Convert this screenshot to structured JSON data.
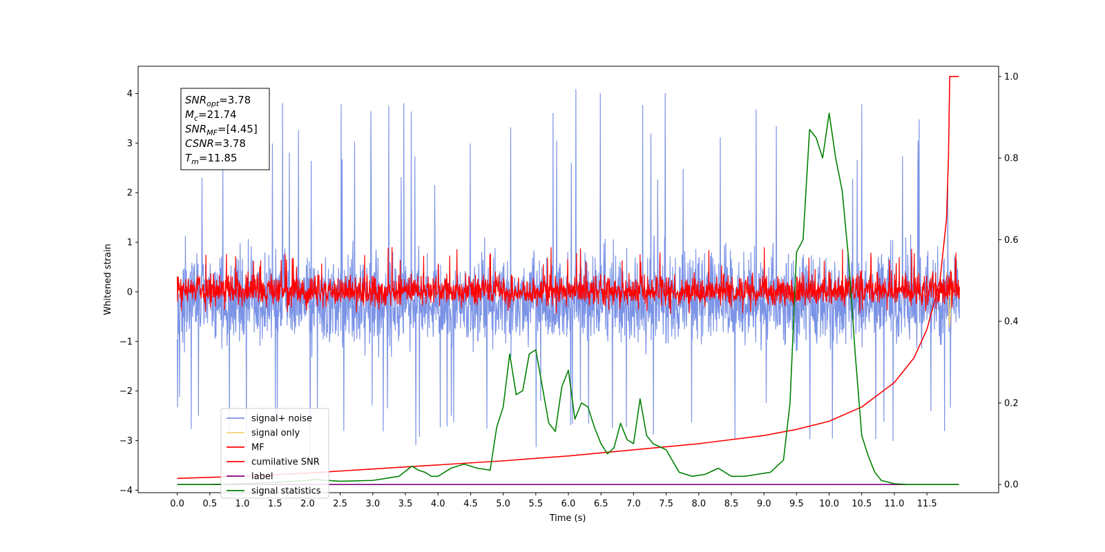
{
  "chart_data": {
    "type": "line",
    "xlabel": "Time (s)",
    "ylabel": "Whitened strain",
    "xlim": [
      -0.6,
      12.6
    ],
    "ylim": [
      -4.05,
      4.55
    ],
    "y2lim": [
      -0.02,
      1.025
    ],
    "x_ticks": [
      0.0,
      0.5,
      1.0,
      1.5,
      2.0,
      2.5,
      3.0,
      3.5,
      4.0,
      4.5,
      5.0,
      5.5,
      6.0,
      6.5,
      7.0,
      7.5,
      8.0,
      8.5,
      9.0,
      9.5,
      10.0,
      10.5,
      11.0,
      11.5
    ],
    "x_tick_labels": [
      "0.0",
      "0.5",
      "1.0",
      "1.5",
      "2.0",
      "2.5",
      "3.0",
      "3.5",
      "4.0",
      "4.5",
      "5.0",
      "5.5",
      "6.0",
      "6.5",
      "7.0",
      "7.5",
      "8.0",
      "8.5",
      "9.0",
      "9.5",
      "10.0",
      "10.5",
      "11.0",
      "11.5"
    ],
    "y_ticks": [
      -4,
      -3,
      -2,
      -1,
      0,
      1,
      2,
      3,
      4
    ],
    "y_tick_labels": [
      "−4",
      "−3",
      "−2",
      "−1",
      "0",
      "1",
      "2",
      "3",
      "4"
    ],
    "y2_ticks": [
      0.0,
      0.2,
      0.4,
      0.6,
      0.8,
      1.0
    ],
    "y2_tick_labels": [
      "0.0",
      "0.2",
      "0.4",
      "0.6",
      "0.8",
      "1.0"
    ],
    "grid": false,
    "legend_position": "lower-left",
    "info_box": {
      "position": "upper-left",
      "lines": [
        {
          "name": "SNR",
          "sub": "opt",
          "value": "=3.78"
        },
        {
          "name": "M",
          "sub": "c",
          "value": "=21.74"
        },
        {
          "name": "SNR",
          "sub": "MF",
          "value": "=[4.45]"
        },
        {
          "name": "CSNR",
          "sub": "",
          "value": "=3.78"
        },
        {
          "name": "T",
          "sub": "m",
          "value": "=11.85"
        }
      ]
    },
    "series": [
      {
        "name": "signal+ noise",
        "axis": "left",
        "color": "#7b93e6",
        "style": "noise",
        "x_range": [
          0.0,
          12.0
        ],
        "center": -0.25,
        "typical_range": [
          -1.4,
          1.3
        ],
        "extreme_range": [
          -3.6,
          4.1
        ]
      },
      {
        "name": "signal only",
        "axis": "left",
        "color": "#f5cf7a",
        "x": [
          11.8,
          11.85,
          11.88
        ],
        "y": [
          0.4,
          -0.7,
          0.3
        ]
      },
      {
        "name": "MF",
        "axis": "left",
        "color": "#ff0000",
        "style": "noise",
        "x_range": [
          0.0,
          12.0
        ],
        "center": 0.0,
        "typical_range": [
          -0.35,
          0.5
        ],
        "extreme_range": [
          -0.45,
          0.9
        ]
      },
      {
        "name": "cumilative SNR",
        "axis": "right",
        "color": "#ff0000",
        "x": [
          0.0,
          1.0,
          2.0,
          3.0,
          4.0,
          5.0,
          6.0,
          7.0,
          8.0,
          9.0,
          9.5,
          10.0,
          10.5,
          11.0,
          11.3,
          11.5,
          11.7,
          11.8,
          11.83,
          11.85,
          11.99
        ],
        "y": [
          0.015,
          0.02,
          0.028,
          0.038,
          0.048,
          0.058,
          0.07,
          0.085,
          0.1,
          0.12,
          0.135,
          0.155,
          0.19,
          0.25,
          0.31,
          0.38,
          0.5,
          0.65,
          0.8,
          1.0,
          1.0
        ]
      },
      {
        "name": "label",
        "axis": "right",
        "color": "#800080",
        "x": [
          0.0,
          11.99
        ],
        "y": [
          0.0,
          0.0
        ]
      },
      {
        "name": "signal statistics",
        "axis": "right",
        "color": "#008000",
        "x": [
          0.0,
          0.5,
          1.0,
          1.5,
          2.0,
          2.1,
          2.3,
          2.5,
          3.0,
          3.2,
          3.4,
          3.6,
          3.7,
          3.8,
          3.9,
          4.0,
          4.2,
          4.4,
          4.6,
          4.8,
          4.9,
          5.0,
          5.1,
          5.2,
          5.3,
          5.4,
          5.5,
          5.6,
          5.7,
          5.8,
          5.9,
          6.0,
          6.1,
          6.2,
          6.3,
          6.4,
          6.5,
          6.6,
          6.7,
          6.8,
          6.9,
          7.0,
          7.1,
          7.2,
          7.3,
          7.5,
          7.7,
          7.9,
          8.1,
          8.3,
          8.5,
          8.7,
          8.9,
          9.1,
          9.3,
          9.4,
          9.5,
          9.6,
          9.7,
          9.8,
          9.9,
          10.0,
          10.1,
          10.2,
          10.3,
          10.4,
          10.5,
          10.6,
          10.7,
          10.8,
          11.0,
          11.2,
          11.99
        ],
        "y": [
          0.0,
          0.0,
          0.002,
          0.005,
          0.01,
          0.012,
          0.01,
          0.008,
          0.01,
          0.015,
          0.02,
          0.045,
          0.035,
          0.03,
          0.02,
          0.02,
          0.04,
          0.05,
          0.04,
          0.035,
          0.14,
          0.19,
          0.32,
          0.22,
          0.23,
          0.32,
          0.33,
          0.24,
          0.15,
          0.13,
          0.24,
          0.28,
          0.16,
          0.2,
          0.19,
          0.14,
          0.1,
          0.075,
          0.09,
          0.15,
          0.11,
          0.1,
          0.21,
          0.12,
          0.1,
          0.085,
          0.03,
          0.02,
          0.025,
          0.04,
          0.02,
          0.02,
          0.025,
          0.03,
          0.06,
          0.2,
          0.57,
          0.6,
          0.87,
          0.85,
          0.8,
          0.91,
          0.8,
          0.72,
          0.55,
          0.32,
          0.12,
          0.07,
          0.03,
          0.01,
          0.002,
          0.0,
          0.0
        ]
      }
    ]
  }
}
